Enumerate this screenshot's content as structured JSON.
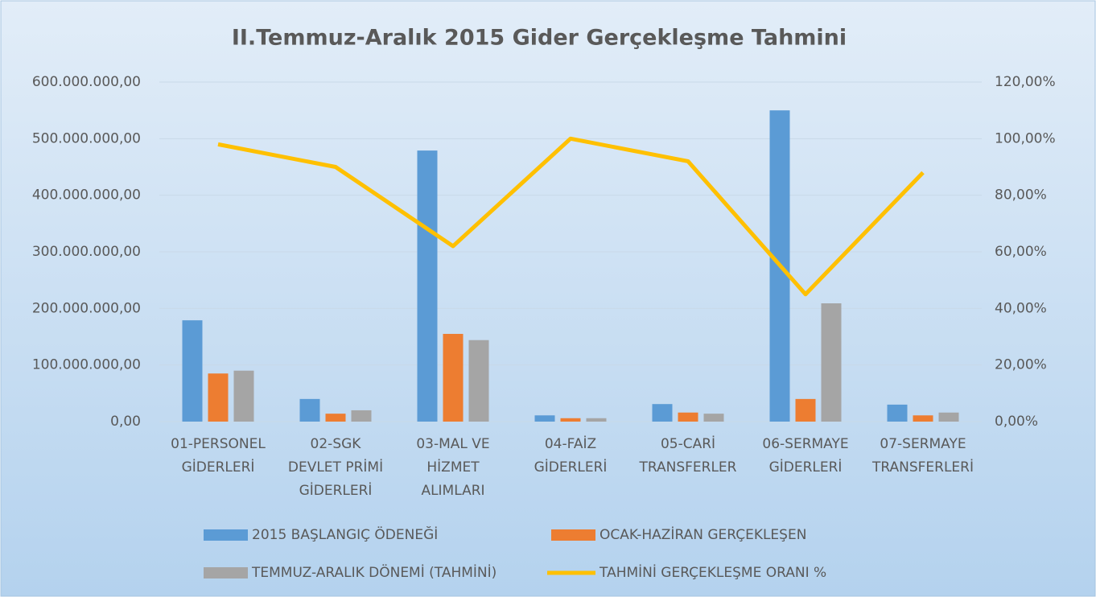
{
  "chart_data": {
    "type": "bar_line",
    "title": "II.Temmuz-Aralık 2015 Gider Gerçekleşme Tahmini",
    "categories": [
      "01-PERSONEL\nGİDERLERİ",
      "02-SGK\nDEVLET PRİMİ\nGİDERLERİ",
      "03-MAL VE\nHİZMET\nALIMLARI",
      "04-FAİZ\nGİDERLERİ",
      "05-CARİ\nTRANSFERLER",
      "06-SERMAYE\nGİDERLERİ",
      "07-SERMAYE\nTRANSFERLERİ"
    ],
    "series": [
      {
        "name": "2015 BAŞLANGIÇ ÖDENEĞİ",
        "color": "#5b9bd5",
        "values": [
          179000000,
          40000000,
          479000000,
          11000000,
          31000000,
          550000000,
          30000000
        ]
      },
      {
        "name": "OCAK-HAZİRAN GERÇEKLEŞEN",
        "color": "#ed7d31",
        "values": [
          85000000,
          14000000,
          155000000,
          6000000,
          16000000,
          40000000,
          11000000
        ]
      },
      {
        "name": "TEMMUZ-ARALIK DÖNEMİ (TAHMİNİ)",
        "color": "#a5a5a5",
        "values": [
          90000000,
          20000000,
          144000000,
          6000000,
          14000000,
          209000000,
          16000000
        ]
      },
      {
        "name": "TAHMİNİ GERÇEKLEŞME ORANI %",
        "color": "#ffc000",
        "type": "line",
        "axis": "y2",
        "values": [
          98,
          90,
          62,
          100,
          92,
          45,
          88
        ]
      }
    ],
    "ylim": [
      0,
      600000000
    ],
    "yticks": [
      {
        "value": 0,
        "label": "0,00"
      },
      {
        "value": 100000000,
        "label": "100.000.000,00"
      },
      {
        "value": 200000000,
        "label": "200.000.000,00"
      },
      {
        "value": 300000000,
        "label": "300.000.000,00"
      },
      {
        "value": 400000000,
        "label": "400.000.000,00"
      },
      {
        "value": 500000000,
        "label": "500.000.000,00"
      },
      {
        "value": 600000000,
        "label": "600.000.000,00"
      }
    ],
    "y2lim": [
      0,
      120
    ],
    "y2ticks": [
      {
        "value": 0,
        "label": "0,00%"
      },
      {
        "value": 20,
        "label": "20,00%"
      },
      {
        "value": 40,
        "label": "40,00%"
      },
      {
        "value": 60,
        "label": "60,00%"
      },
      {
        "value": 80,
        "label": "80,00%"
      },
      {
        "value": 100,
        "label": "100,00%"
      },
      {
        "value": 120,
        "label": "120,00%"
      }
    ],
    "grid": true
  }
}
